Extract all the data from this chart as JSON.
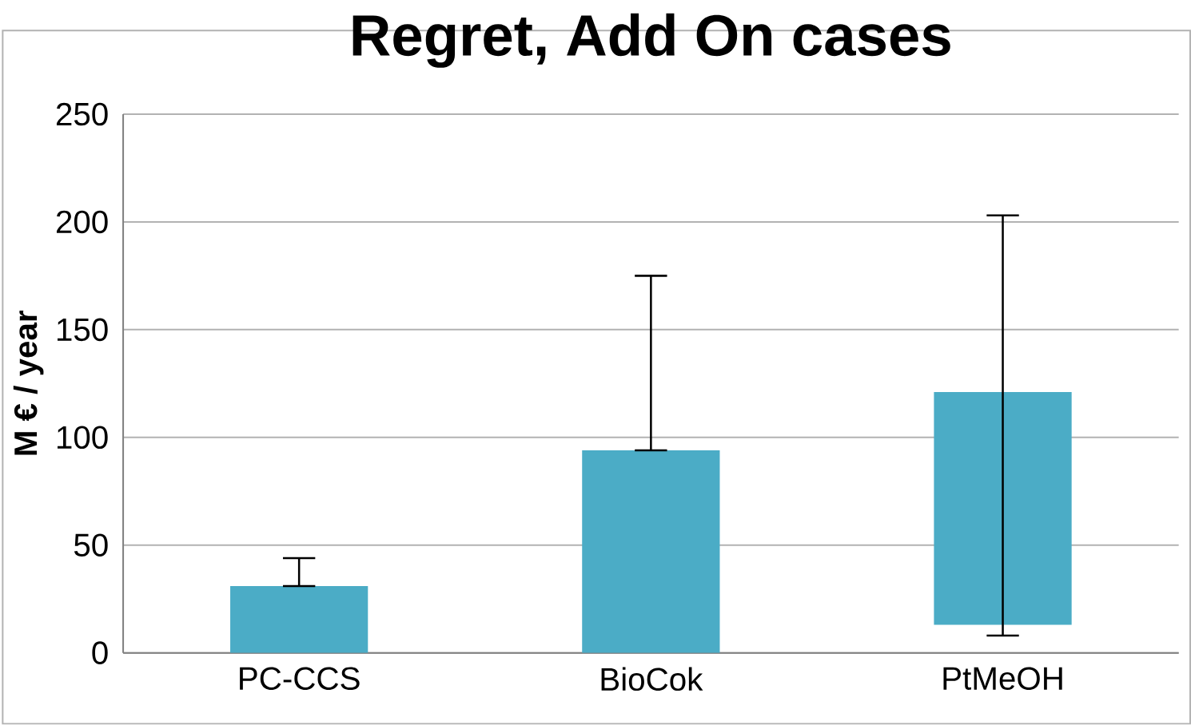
{
  "chart_data": {
    "type": "bar",
    "title": "Regret, Add On cases",
    "ylabel": "M € / year",
    "categories": [
      "PC-CCS",
      "BioCok",
      "PtMeOH"
    ],
    "values": [
      31,
      94,
      108
    ],
    "base": [
      0,
      0,
      13
    ],
    "errors": [
      [
        31,
        44
      ],
      [
        94,
        175
      ],
      [
        8,
        203
      ]
    ],
    "color": "#4bacc6",
    "ylim": [
      0,
      250
    ],
    "yticks": [
      0,
      50,
      100,
      150,
      200,
      250
    ],
    "grid": "y"
  }
}
